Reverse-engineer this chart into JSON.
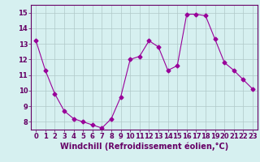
{
  "x": [
    0,
    1,
    2,
    3,
    4,
    5,
    6,
    7,
    8,
    9,
    10,
    11,
    12,
    13,
    14,
    15,
    16,
    17,
    18,
    19,
    20,
    21,
    22,
    23
  ],
  "y": [
    13.2,
    11.3,
    9.8,
    8.7,
    8.2,
    8.0,
    7.8,
    7.6,
    8.2,
    9.6,
    12.0,
    12.2,
    13.2,
    12.8,
    11.3,
    11.6,
    14.9,
    14.9,
    14.8,
    13.3,
    11.8,
    11.3,
    10.7,
    10.1
  ],
  "line_color": "#990099",
  "marker": "D",
  "marker_size": 2.5,
  "bg_color": "#d6f0f0",
  "grid_color": "#b0c8c8",
  "xlabel": "Windchill (Refroidissement éolien,°C)",
  "xlabel_color": "#660066",
  "ylim": [
    7.5,
    15.5
  ],
  "xlim": [
    -0.5,
    23.5
  ],
  "yticks": [
    8,
    9,
    10,
    11,
    12,
    13,
    14,
    15
  ],
  "xticks": [
    0,
    1,
    2,
    3,
    4,
    5,
    6,
    7,
    8,
    9,
    10,
    11,
    12,
    13,
    14,
    15,
    16,
    17,
    18,
    19,
    20,
    21,
    22,
    23
  ],
  "tick_fontsize": 6,
  "xlabel_fontsize": 7,
  "figsize": [
    3.2,
    2.0
  ],
  "dpi": 100
}
